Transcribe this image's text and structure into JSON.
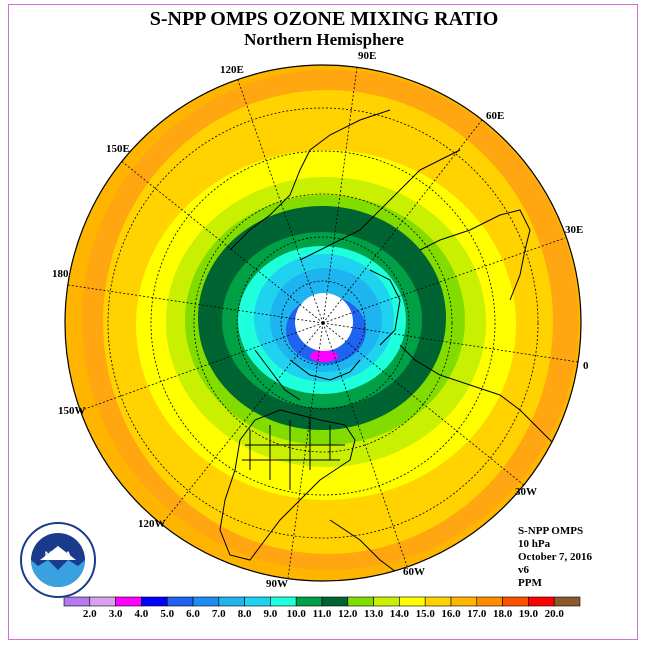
{
  "title": "S-NPP OMPS OZONE MIXING RATIO",
  "subtitle": "Northern Hemisphere",
  "longitude_labels": [
    "90E",
    "60E",
    "30E",
    "0",
    "30W",
    "60W",
    "90W",
    "120W",
    "150W",
    "180",
    "150E",
    "120E"
  ],
  "info": {
    "instrument": "S-NPP OMPS",
    "level": "10 hPa",
    "date": "October 7, 2016",
    "version": "v6",
    "units": "PPM"
  },
  "logo_text": "NOAA",
  "colorbar": {
    "labels": [
      "2.0",
      "3.0",
      "4.0",
      "5.0",
      "6.0",
      "7.0",
      "8.0",
      "9.0",
      "10.0",
      "11.0",
      "12.0",
      "13.0",
      "14.0",
      "15.0",
      "16.0",
      "17.0",
      "18.0",
      "19.0",
      "20.0"
    ],
    "colors": [
      "#b478f0",
      "#d7a3f0",
      "#ff00ff",
      "#0000ff",
      "#1e64f0",
      "#1e8cf0",
      "#1eb4f0",
      "#1ed2f0",
      "#1effdc",
      "#00a046",
      "#006432",
      "#82dc00",
      "#c8f000",
      "#ffff00",
      "#ffd200",
      "#ffb400",
      "#ff8c00",
      "#ff5000",
      "#ff0000",
      "#8b5a2b"
    ]
  }
}
